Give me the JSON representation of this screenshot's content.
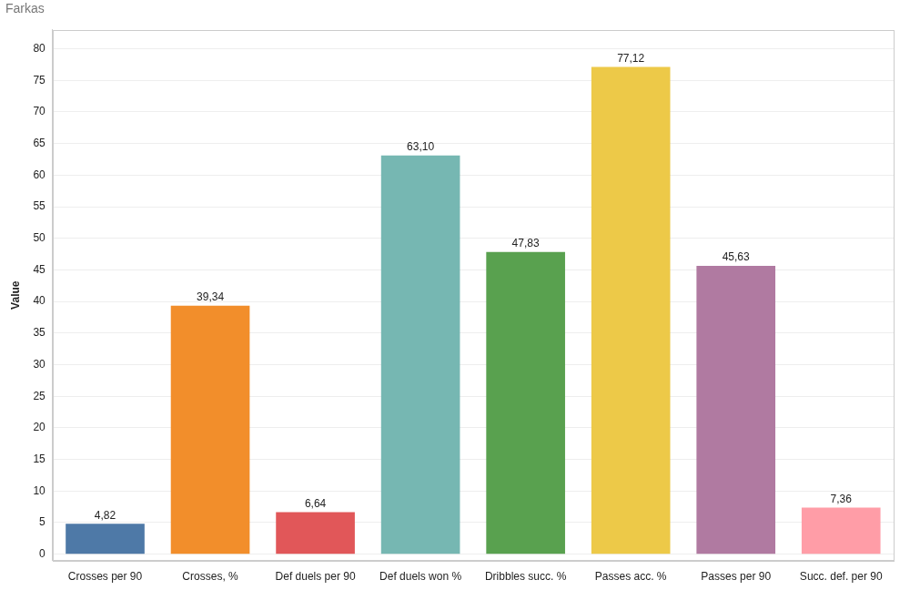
{
  "chart_data": {
    "type": "bar",
    "title": "Farkas",
    "y_label": "Value",
    "categories": [
      "Crosses per 90",
      "Crosses, %",
      "Def duels per 90",
      "Def duels won %",
      "Dribbles succ. %",
      "Passes acc. %",
      "Passes per 90",
      "Succ. def. per 90"
    ],
    "values": [
      4.82,
      39.34,
      6.64,
      63.1,
      47.83,
      77.12,
      45.63,
      7.36
    ],
    "value_labels": [
      "4,82",
      "39,34",
      "6,64",
      "63,10",
      "47,83",
      "77,12",
      "45,63",
      "7,36"
    ],
    "colors": [
      "#4e79a7",
      "#f28e2b",
      "#e15759",
      "#76b7b2",
      "#59a14f",
      "#edc948",
      "#b07aa1",
      "#ff9da7"
    ],
    "ylim": [
      -1,
      83
    ],
    "yticks": [
      0,
      5,
      10,
      15,
      20,
      25,
      30,
      35,
      40,
      45,
      50,
      55,
      60,
      65,
      70,
      75,
      80
    ],
    "grid": true,
    "data_labels": true
  }
}
